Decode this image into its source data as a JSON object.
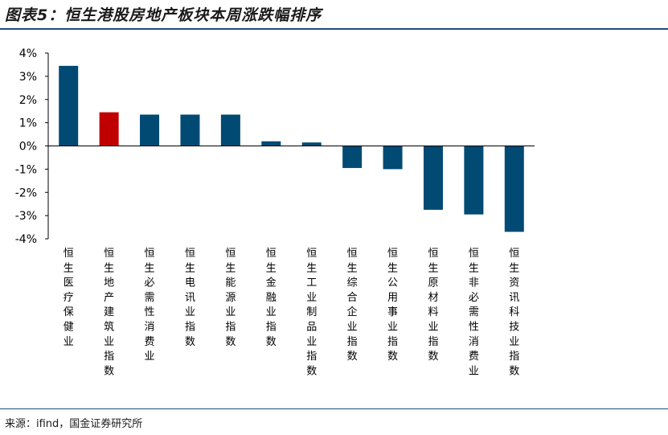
{
  "title": "图表5：恒生港股房地产板块本周涨跌幅排序",
  "source": "来源：ifind，国金证券研究所",
  "colors": {
    "default_bar": "#004a74",
    "highlight_bar": "#c00000",
    "rule": "#1f4e79"
  },
  "chart_data": {
    "type": "bar",
    "title": "图表5：恒生港股房地产板块本周涨跌幅排序",
    "xlabel": "",
    "ylabel": "",
    "ylim": [
      -4,
      4
    ],
    "yticks": [
      4,
      3,
      2,
      1,
      0,
      -1,
      -2,
      -3,
      -4
    ],
    "ytick_labels": [
      "4%",
      "3%",
      "2%",
      "1%",
      "0%",
      "-1%",
      "-2%",
      "-3%",
      "-4%"
    ],
    "grid": false,
    "legend": "none",
    "categories": [
      "恒生医疗保健业",
      "恒生地产建筑业指数",
      "恒生必需性消费业",
      "恒生电讯业指数",
      "恒生能源业指数",
      "恒生金融业指数",
      "恒生工业制品业指数",
      "恒生综合企业指数",
      "恒生公用事业指数",
      "恒生原材料业指数",
      "恒生非必需性消费业",
      "恒生资讯科技业指数"
    ],
    "values": [
      3.45,
      1.45,
      1.35,
      1.35,
      1.35,
      0.2,
      0.15,
      -0.95,
      -1.0,
      -2.75,
      -2.95,
      -3.7
    ],
    "highlight_index": 1
  }
}
